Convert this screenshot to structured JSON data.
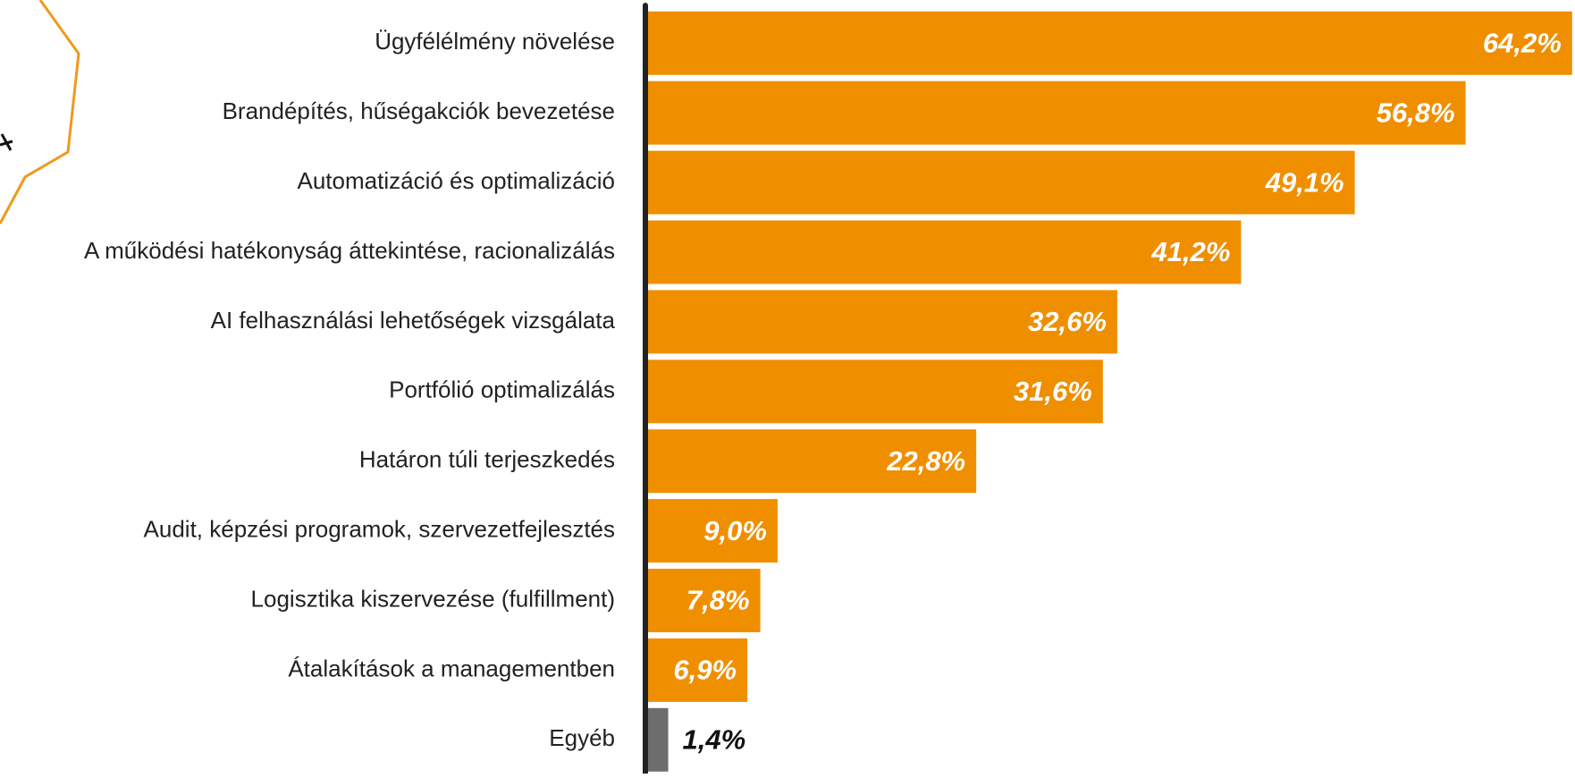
{
  "chart_data": {
    "type": "bar",
    "orientation": "horizontal",
    "categories": [
      "Ügyfélélmény növelése",
      "Brandépítés, hűségakciók bevezetése",
      "Automatizáció és optimalizáció",
      "A működési hatékonyság áttekintése, racionalizálás",
      "AI felhasználási lehetőségek vizsgálata",
      "Portfólió optimalizálás",
      "Határon túli terjeszkedés",
      "Audit, képzési programok, szervezetfejlesztés",
      "Logisztika kiszervezése (fulfillment)",
      "Átalakítások a managementben",
      "Egyéb"
    ],
    "values": [
      64.2,
      56.8,
      49.1,
      41.2,
      32.6,
      31.6,
      22.8,
      9.0,
      7.8,
      6.9,
      1.4
    ],
    "value_labels": [
      "64,2%",
      "56,8%",
      "49,1%",
      "41,2%",
      "32,6%",
      "31,6%",
      "22,8%",
      "9,0%",
      "7,8%",
      "6,9%",
      "1,4%"
    ],
    "colors": [
      "#ef8f00",
      "#ef8f00",
      "#ef8f00",
      "#ef8f00",
      "#ef8f00",
      "#ef8f00",
      "#ef8f00",
      "#ef8f00",
      "#ef8f00",
      "#ef8f00",
      "#6d6d6d"
    ],
    "xlim": [
      0,
      64.4
    ]
  }
}
